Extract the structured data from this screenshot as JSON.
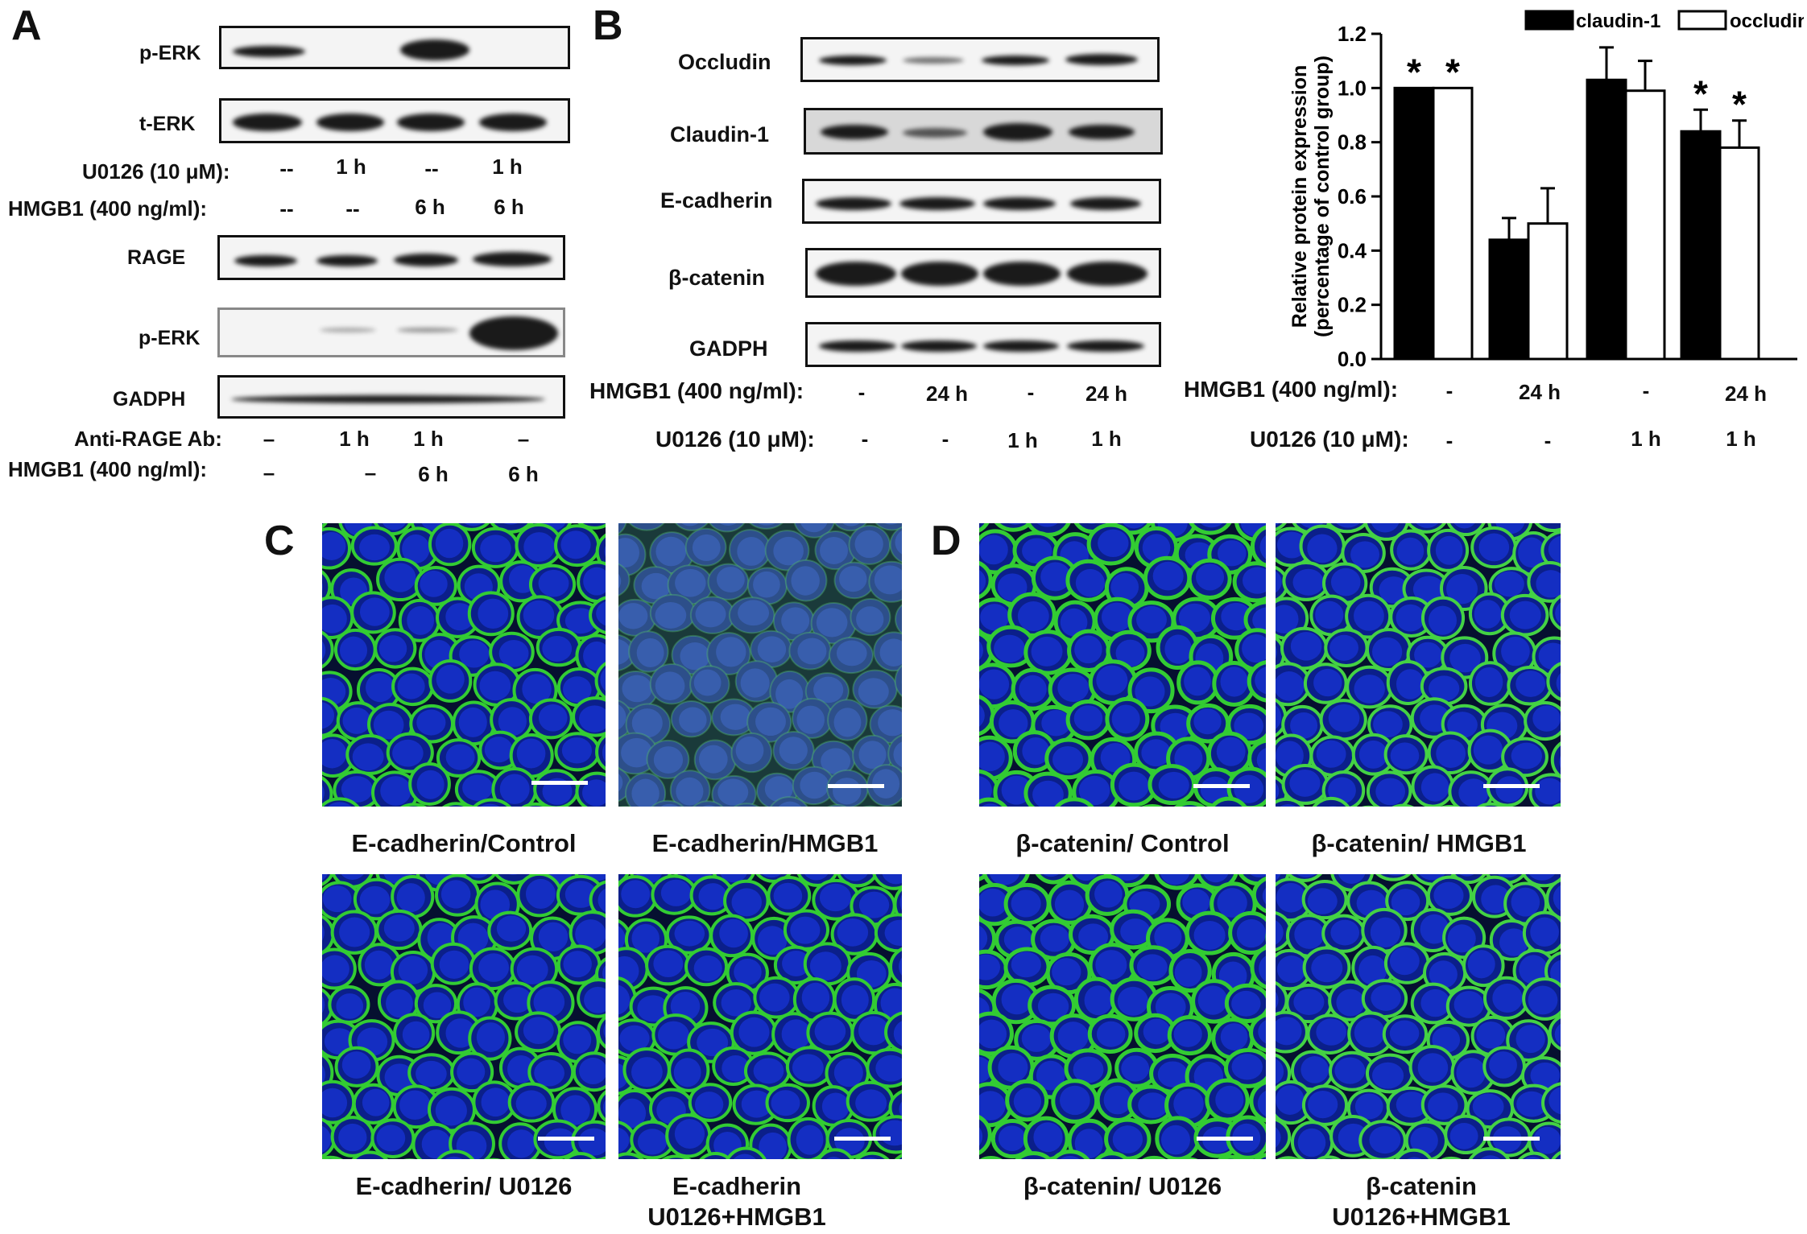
{
  "panels": {
    "A": "A",
    "B": "B",
    "C": "C",
    "D": "D"
  },
  "panelA": {
    "blot1": [
      "p-ERK",
      "t-ERK"
    ],
    "cond1": [
      {
        "label": "U0126 (10 μM):",
        "values": [
          "--",
          "1 h",
          "--",
          "1 h"
        ]
      },
      {
        "label": "HMGB1 (400 ng/ml):",
        "values": [
          "--",
          "--",
          "6 h",
          "6 h"
        ]
      }
    ],
    "blot2": [
      "RAGE",
      "p-ERK",
      "GADPH"
    ],
    "cond2": [
      {
        "label": "Anti-RAGE Ab:",
        "values": [
          "–",
          "1 h",
          "1 h",
          "–"
        ]
      },
      {
        "label": "HMGB1 (400 ng/ml):",
        "values": [
          "–",
          "–",
          "6 h",
          "6 h"
        ]
      }
    ]
  },
  "panelB": {
    "blots": [
      "Occludin",
      "Claudin-1",
      "E-cadherin",
      "β-catenin",
      "GADPH"
    ],
    "cond": [
      {
        "label": "HMGB1 (400 ng/ml):",
        "values": [
          "-",
          "24 h",
          "-",
          "24 h"
        ]
      },
      {
        "label": "U0126 (10 μM):",
        "values": [
          "-",
          "-",
          "1 h",
          "1 h"
        ]
      }
    ],
    "chart_cond": [
      {
        "label": "HMGB1 (400 ng/ml):",
        "values": [
          "-",
          "24 h",
          "-",
          "24 h"
        ]
      },
      {
        "label": "U0126 (10 μM):",
        "values": [
          "-",
          "-",
          "1 h",
          "1 h"
        ]
      }
    ]
  },
  "chart_data": {
    "type": "bar",
    "ylabel_line1": "Relative protein expression",
    "ylabel_line2": "(percentage of control group)",
    "ylim": [
      0,
      1.2
    ],
    "yticks": [
      "0.0",
      "0.2",
      "0.4",
      "0.6",
      "0.8",
      "1.0",
      "1.2"
    ],
    "legend_position": "top-right",
    "series": [
      {
        "name": "claudin-1",
        "color": "#000000",
        "values": [
          1.0,
          0.44,
          1.03,
          0.84
        ],
        "errors": [
          0.0,
          0.08,
          0.12,
          0.08
        ]
      },
      {
        "name": "occludin",
        "color": "#ffffff",
        "values": [
          1.0,
          0.5,
          0.99,
          0.78
        ],
        "errors": [
          0.0,
          0.13,
          0.11,
          0.1
        ]
      }
    ],
    "significance": [
      {
        "group": 0,
        "series": 0,
        "mark": "*"
      },
      {
        "group": 0,
        "series": 1,
        "mark": "*"
      },
      {
        "group": 3,
        "series": 0,
        "mark": "*"
      },
      {
        "group": 3,
        "series": 1,
        "mark": "*"
      }
    ]
  },
  "panelC": {
    "captions": [
      "E-cadherin/Control",
      "E-cadherin/HMGB1",
      "E-cadherin/ U0126",
      "E-cadherin",
      "U0126+HMGB1"
    ]
  },
  "panelD": {
    "captions": [
      "β-catenin/ Control",
      "β-catenin/ HMGB1",
      "β-catenin/ U0126",
      "β-catenin",
      "U0126+HMGB1"
    ]
  }
}
